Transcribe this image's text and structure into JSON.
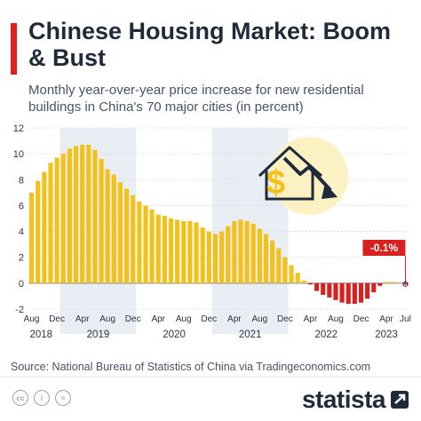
{
  "header": {
    "title": "Chinese Housing Market: Boom & Bust",
    "subtitle": "Monthly year-over-year price increase for new residential buildings in China's 70 major cities (in percent)"
  },
  "footer": {
    "source": "Source: National Bureau of Statistics of China via Tradingeconomics.com",
    "brand": "statista"
  },
  "colors": {
    "positive": "#f2c11a",
    "negative": "#d8201f",
    "title": "#1f2a3a",
    "accent": "#e0201f",
    "year_band": "#e9edf4"
  },
  "chart_data": {
    "type": "bar",
    "title": "",
    "xlabel": "",
    "ylabel": "",
    "ylim": [
      -2,
      12
    ],
    "yticks": [
      -2,
      0,
      2,
      4,
      6,
      8,
      10,
      12
    ],
    "grid": true,
    "x_tick_labels": [
      "Aug",
      "Dec",
      "Apr",
      "Aug",
      "Dec",
      "Apr",
      "Aug",
      "Dec",
      "Apr",
      "Aug",
      "Dec",
      "Apr",
      "Aug",
      "Dec",
      "Apr",
      "Jul"
    ],
    "year_labels": [
      "2018",
      "2019",
      "2020",
      "2021",
      "2022",
      "2023"
    ],
    "annotation": "-0.1%",
    "categories": [
      "Aug 2018",
      "Sep 2018",
      "Oct 2018",
      "Nov 2018",
      "Dec 2018",
      "Jan 2019",
      "Feb 2019",
      "Mar 2019",
      "Apr 2019",
      "May 2019",
      "Jun 2019",
      "Jul 2019",
      "Aug 2019",
      "Sep 2019",
      "Oct 2019",
      "Nov 2019",
      "Dec 2019",
      "Jan 2020",
      "Feb 2020",
      "Mar 2020",
      "Apr 2020",
      "May 2020",
      "Jun 2020",
      "Jul 2020",
      "Aug 2020",
      "Sep 2020",
      "Oct 2020",
      "Nov 2020",
      "Dec 2020",
      "Jan 2021",
      "Feb 2021",
      "Mar 2021",
      "Apr 2021",
      "May 2021",
      "Jun 2021",
      "Jul 2021",
      "Aug 2021",
      "Sep 2021",
      "Oct 2021",
      "Nov 2021",
      "Dec 2021",
      "Jan 2022",
      "Feb 2022",
      "Mar 2022",
      "Apr 2022",
      "May 2022",
      "Jun 2022",
      "Jul 2022",
      "Aug 2022",
      "Sep 2022",
      "Oct 2022",
      "Nov 2022",
      "Dec 2022",
      "Jan 2023",
      "Feb 2023",
      "Mar 2023",
      "Apr 2023",
      "May 2023",
      "Jun 2023",
      "Jul 2023"
    ],
    "values": [
      7.0,
      7.9,
      8.6,
      9.3,
      9.7,
      10.0,
      10.4,
      10.6,
      10.7,
      10.7,
      10.3,
      9.6,
      8.8,
      8.4,
      7.8,
      7.3,
      6.8,
      6.3,
      6.0,
      5.7,
      5.3,
      5.2,
      5.0,
      4.9,
      4.8,
      4.8,
      4.7,
      4.3,
      4.0,
      3.8,
      4.0,
      4.4,
      4.8,
      4.9,
      4.8,
      4.6,
      4.2,
      3.8,
      3.3,
      2.7,
      2.0,
      1.4,
      0.8,
      0.2,
      -0.1,
      -0.6,
      -0.9,
      -1.1,
      -1.3,
      -1.5,
      -1.6,
      -1.6,
      -1.5,
      -1.2,
      -0.7,
      -0.2,
      0.1,
      0.1,
      0.0,
      -0.1
    ]
  }
}
